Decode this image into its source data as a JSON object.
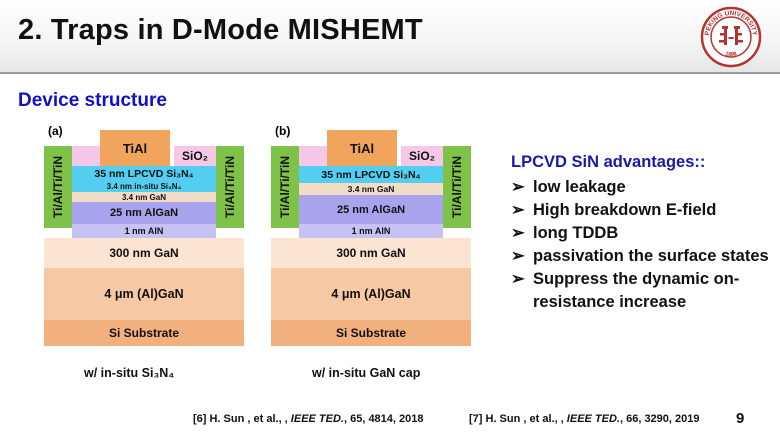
{
  "slide": {
    "title": "2. Traps in D-Mode MISHEMT",
    "section_title": "Device structure",
    "page_number": "9"
  },
  "diagram_a": {
    "label": "(a)",
    "gate": "TiAl",
    "sio2": "SiO₂",
    "contact": "Ti/Al/Ti/TiN",
    "layers": {
      "sin": "35 nm LPCVD Si₃N₄",
      "insitu": "3.4 nm in-situ Si₃N₄",
      "gan_cap": "3.4 nm GaN",
      "algan": "25 nm AlGaN",
      "aln": "1 nm AlN",
      "gan300": "300 nm GaN",
      "algan4": "4 μm (Al)GaN",
      "si": "Si Substrate"
    },
    "caption": "w/ in-situ Si₃N₄"
  },
  "diagram_b": {
    "label": "(b)",
    "gate": "TiAl",
    "sio2": "SiO₂",
    "contact": "Ti/Al/Ti/TiN",
    "layers": {
      "sin": "35 nm LPCVD Si₃N₄",
      "gan_cap": "3.4 nm GaN",
      "algan": "25 nm AlGaN",
      "aln": "1 nm AlN",
      "gan300": "300 nm GaN",
      "algan4": "4 μm (Al)GaN",
      "si": "Si Substrate"
    },
    "caption": "w/ in-situ GaN cap"
  },
  "advantages": {
    "title": "LPCVD SiN advantages::",
    "bullet": "➢",
    "items": [
      "low leakage",
      "High breakdown E-field",
      "long TDDB",
      "passivation the surface states",
      "Suppress the dynamic on-resistance increase"
    ]
  },
  "references": {
    "ref1_prefix": "[6] H. Sun , et al., , ",
    "ref1_journal": "IEEE TED.",
    "ref1_suffix": ", 65, 4814, 2018",
    "ref2_prefix": "[7] H. Sun , et al., , ",
    "ref2_journal": "IEEE TED.",
    "ref2_suffix": ", 66, 3290, 2019"
  },
  "logo": {
    "text_top": "PEKING UNIVERSITY",
    "text_bottom": "1898",
    "color": "#b5322e"
  },
  "colors": {
    "section_title": "#1010c8",
    "adv_title": "#1a1aa8",
    "contact": "#7fc24a",
    "gate": "#f0a45c",
    "sio2": "#f5c7e8",
    "sin": "#53cdf0",
    "gan_cap": "#f3dcc6",
    "algan": "#a9a3ee",
    "aln": "#c7c1f4",
    "gan300": "#fbe4d2",
    "algan4": "#f6c8a3",
    "si": "#f2b07e"
  }
}
